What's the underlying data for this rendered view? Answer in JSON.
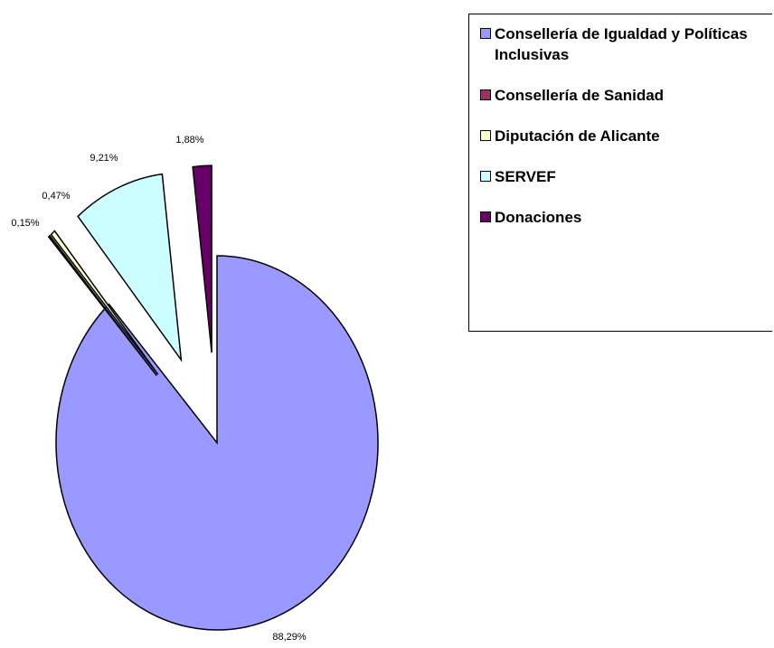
{
  "chart_data": {
    "type": "pie",
    "categories": [
      "Consellería de Igualdad y Políticas Inclusivas",
      "Consellería de Sanidad",
      "Diputación de Alicante",
      "SERVEF",
      "Donaciones"
    ],
    "values": [
      88.29,
      0.15,
      0.47,
      9.21,
      1.88
    ],
    "value_labels": [
      "88,29%",
      "0,15%",
      "0,47%",
      "9,21%",
      "1,88%"
    ],
    "colors": [
      "#9999ff",
      "#993366",
      "#ffffcc",
      "#ccffff",
      "#660066"
    ],
    "legend": "right"
  }
}
